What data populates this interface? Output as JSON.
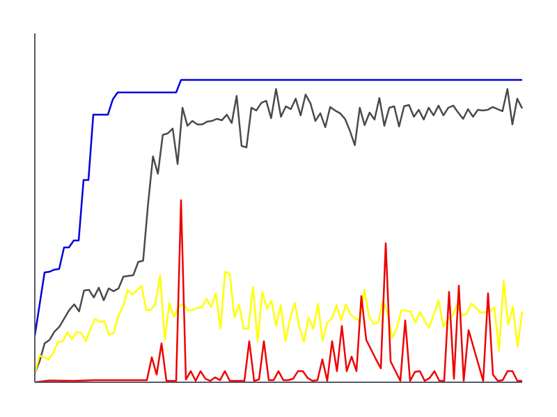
{
  "chart_data": {
    "type": "line",
    "title": "",
    "xlabel": "",
    "ylabel": "",
    "xlim": [
      0,
      100
    ],
    "ylim": [
      0,
      100
    ],
    "grid": false,
    "legend": "none",
    "axis_color": "#555a66",
    "series": [
      {
        "color": "#0000dd",
        "points": [
          [
            0,
            13.4
          ],
          [
            2,
            31.6
          ],
          [
            3,
            31.8
          ],
          [
            4,
            32.4
          ],
          [
            5,
            32.6
          ],
          [
            6,
            38.8
          ],
          [
            7,
            38.8
          ],
          [
            8,
            40.8
          ],
          [
            9,
            40.8
          ],
          [
            10,
            58.2
          ],
          [
            11,
            58.2
          ],
          [
            12,
            77.0
          ],
          [
            13,
            77.0
          ],
          [
            14,
            77.0
          ],
          [
            15,
            77.0
          ],
          [
            16,
            81.4
          ],
          [
            17,
            83.4
          ],
          [
            18,
            83.4
          ],
          [
            19,
            83.4
          ],
          [
            20,
            83.4
          ],
          [
            21,
            83.4
          ],
          [
            22,
            83.4
          ],
          [
            23,
            83.4
          ],
          [
            29,
            83.4
          ],
          [
            30,
            87.0
          ],
          [
            100,
            87.0
          ]
        ]
      },
      {
        "color": "#4a4a4a",
        "values": [
          2.5,
          6.2,
          11.2,
          12.2,
          14.6,
          16.0,
          18.4,
          20.8,
          22.4,
          20.4,
          26.4,
          26.6,
          24.4,
          27.2,
          23.6,
          27.0,
          26.2,
          27.0,
          30.4,
          30.6,
          30.8,
          34.6,
          35.0,
          51.2,
          65.0,
          60.0,
          71.2,
          71.6,
          73.0,
          62.8,
          79.0,
          73.8,
          75.2,
          74.2,
          74.2,
          75.0,
          75.2,
          75.8,
          75.4,
          77.0,
          74.6,
          82.4,
          68.0,
          67.6,
          79.0,
          78.2,
          80.4,
          81.0,
          76.0,
          84.4,
          76.4,
          79.4,
          78.6,
          81.6,
          76.8,
          82.8,
          80.2,
          75.2,
          77.4,
          73.4,
          79.2,
          78.2,
          77.4,
          75.8,
          72.4,
          68.2,
          79.0,
          74.0,
          77.6,
          75.6,
          81.8,
          73.8,
          79.0,
          79.4,
          73.6,
          79.4,
          79.8,
          76.4,
          78.4,
          75.6,
          79.0,
          76.8,
          79.6,
          76.8,
          79.0,
          79.6,
          77.6,
          75.8,
          78.6,
          76.4,
          78.4,
          78.2,
          78.4,
          79.2,
          78.6,
          78.0,
          84.4,
          74.2,
          81.6,
          78.8
        ]
      },
      {
        "color": "#ffff00",
        "values": [
          2.4,
          7.6,
          7.2,
          6.6,
          8.6,
          11.6,
          11.8,
          14.4,
          12.4,
          14.4,
          14.2,
          11.8,
          15.4,
          18.2,
          17.4,
          17.6,
          13.6,
          14.2,
          19.0,
          21.8,
          26.6,
          25.2,
          26.4,
          27.8,
          20.8,
          20.8,
          22.6,
          30.8,
          12.2,
          22.8,
          18.8,
          21.8,
          22.6,
          20.6,
          20.8,
          21.4,
          21.6,
          24.0,
          21.6,
          25.6,
          15.4,
          31.8,
          31.2,
          18.6,
          22.4,
          15.4,
          15.4,
          27.4,
          11.8,
          26.0,
          21.2,
          23.4,
          16.2,
          22.2,
          11.8,
          18.4,
          22.8,
          15.8,
          11.6,
          18.6,
          15.4,
          22.6,
          12.0,
          17.2,
          18.2,
          22.2,
          17.8,
          22.4,
          19.6,
          18.4,
          17.6,
          26.6,
          19.0,
          16.8,
          17.2,
          23.4,
          20.0,
          12.8,
          15.6,
          20.8,
          20.6,
          20.2,
          17.2,
          20.2,
          17.6,
          15.8,
          19.8,
          23.6,
          16.0,
          18.0,
          19.2,
          22.4,
          19.2,
          19.6,
          22.6,
          21.6,
          20.0,
          20.2,
          20.2,
          21.6,
          9.0,
          29.2,
          16.6,
          21.8,
          10.2,
          20.4
        ]
      },
      {
        "color": "#ee0000",
        "points": [
          [
            0,
            0
          ],
          [
            3,
            0.5
          ],
          [
            8,
            0.4
          ],
          [
            12,
            0.6
          ],
          [
            23,
            0.6
          ],
          [
            24,
            7.2
          ],
          [
            25,
            2.2
          ],
          [
            26,
            11.2
          ],
          [
            27,
            0.4
          ],
          [
            28,
            0.4
          ],
          [
            29,
            0.4
          ],
          [
            30,
            52.4
          ],
          [
            31,
            0.8
          ],
          [
            32,
            3.2
          ],
          [
            33,
            0.4
          ],
          [
            34,
            3.2
          ],
          [
            35,
            1.0
          ],
          [
            36,
            0.4
          ],
          [
            37,
            1.4
          ],
          [
            38,
            0.6
          ],
          [
            39,
            3.2
          ],
          [
            40,
            0.4
          ],
          [
            43,
            0.4
          ],
          [
            44,
            11.8
          ],
          [
            45,
            0.4
          ],
          [
            46,
            0.8
          ],
          [
            47,
            11.8
          ],
          [
            48,
            0.6
          ],
          [
            49,
            0.6
          ],
          [
            50,
            3.2
          ],
          [
            51,
            0.6
          ],
          [
            52,
            0.6
          ],
          [
            53,
            1.0
          ],
          [
            54,
            3.2
          ],
          [
            55,
            3.2
          ],
          [
            56,
            1.2
          ],
          [
            57,
            0.4
          ],
          [
            58,
            0.6
          ],
          [
            59,
            6.6
          ],
          [
            60,
            0.4
          ],
          [
            61,
            11.8
          ],
          [
            62,
            3.2
          ],
          [
            63,
            16.2
          ],
          [
            64,
            3.2
          ],
          [
            65,
            7.4
          ],
          [
            66,
            3.2
          ],
          [
            67,
            24.8
          ],
          [
            68,
            12.2
          ],
          [
            70,
            6.6
          ],
          [
            71,
            4.0
          ],
          [
            72,
            40.0
          ],
          [
            73,
            6.0
          ],
          [
            74,
            3.2
          ],
          [
            75,
            0.4
          ],
          [
            76,
            17.8
          ],
          [
            77,
            0.4
          ],
          [
            78,
            3.0
          ],
          [
            79,
            3.2
          ],
          [
            80,
            0.4
          ],
          [
            81,
            1.2
          ],
          [
            82,
            3.2
          ],
          [
            83,
            0.4
          ],
          [
            84,
            0.4
          ],
          [
            85,
            26.0
          ],
          [
            86,
            1.0
          ],
          [
            87,
            27.8
          ],
          [
            88,
            0.4
          ],
          [
            89,
            15.0
          ],
          [
            92,
            0.4
          ],
          [
            93,
            25.6
          ],
          [
            94,
            2.2
          ],
          [
            95,
            0.4
          ],
          [
            96,
            0.6
          ],
          [
            97,
            3.2
          ],
          [
            98,
            3.2
          ],
          [
            99,
            0.4
          ],
          [
            100,
            0.4
          ]
        ]
      }
    ]
  }
}
